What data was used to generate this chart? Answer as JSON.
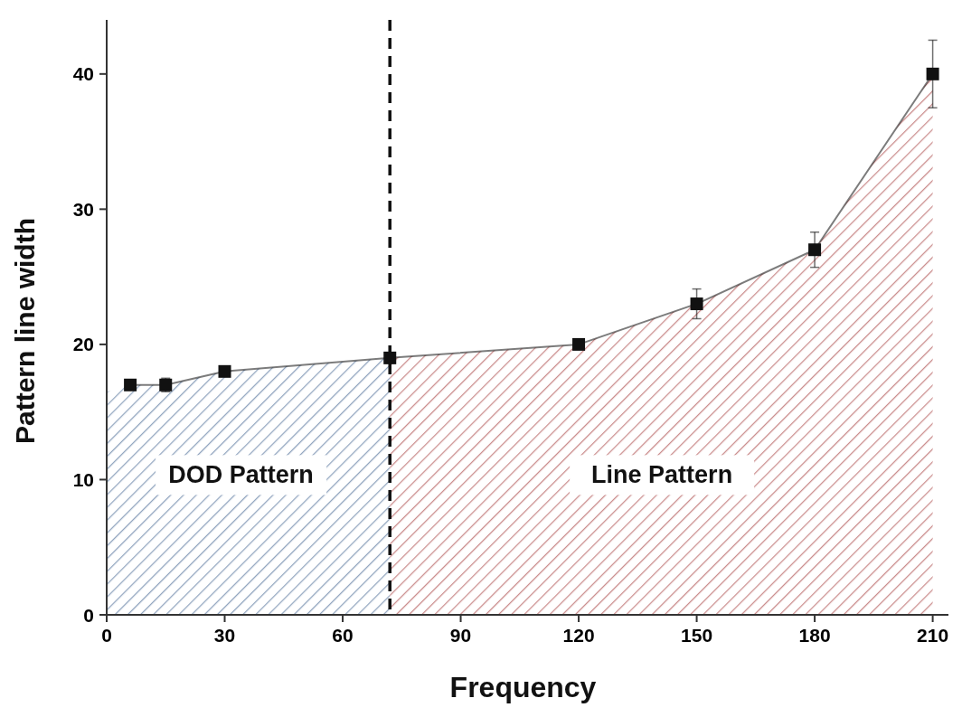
{
  "chart_data": {
    "type": "line",
    "xlabel": "Frequency",
    "ylabel": "Pattern line width",
    "xlim": [
      0,
      214
    ],
    "ylim": [
      0,
      44
    ],
    "xticks": [
      0,
      30,
      60,
      90,
      120,
      150,
      180,
      210
    ],
    "yticks": [
      0,
      10,
      20,
      30,
      40
    ],
    "series": [
      {
        "type": "area",
        "color": "#8fa3bd",
        "x": [
          0,
          6,
          15,
          30,
          72
        ],
        "values": [
          16.5,
          17,
          17,
          18,
          19
        ]
      },
      {
        "type": "area",
        "color": "#c98a8a",
        "x": [
          72,
          120,
          150,
          180,
          210
        ],
        "values": [
          19,
          20,
          23,
          27,
          40
        ]
      },
      {
        "color": "#111111",
        "marker": "square",
        "x": [
          6,
          15,
          30,
          72,
          120,
          150,
          180,
          210
        ],
        "values": [
          17,
          17,
          18,
          19,
          20,
          23,
          27,
          40
        ],
        "errors": [
          null,
          0.5,
          null,
          null,
          null,
          1.1,
          1.3,
          2.5
        ]
      }
    ],
    "ref_lines": [
      {
        "axis": "x",
        "value": 72,
        "color": "#111111",
        "line_style": "dashed"
      }
    ],
    "annotations": [
      "DOD Pattern",
      "Line Pattern"
    ]
  }
}
